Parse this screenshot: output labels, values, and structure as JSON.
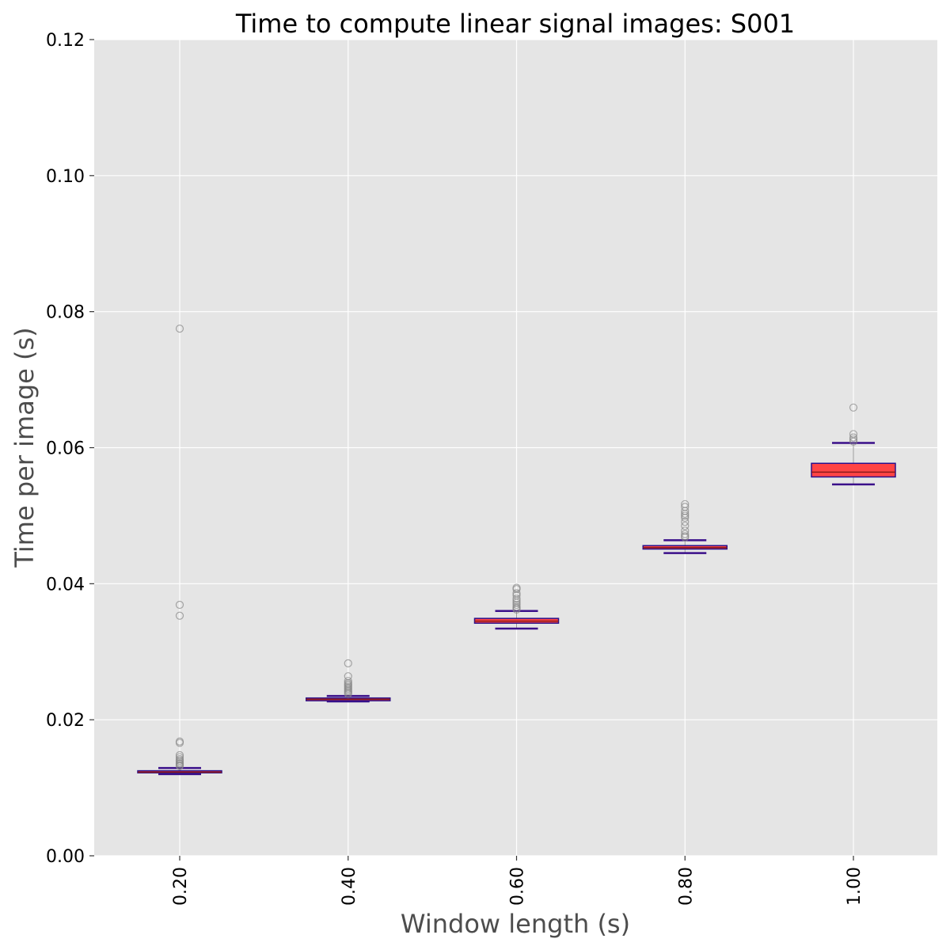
{
  "chart_data": {
    "type": "box",
    "title": "Time to compute linear signal images: S001",
    "xlabel": "Window length (s)",
    "ylabel": "Time per image (s)",
    "ylim": [
      0,
      0.12
    ],
    "yticks": [
      "0.00",
      "0.02",
      "0.04",
      "0.06",
      "0.08",
      "0.10",
      "0.12"
    ],
    "grid": true,
    "colors": {
      "background": "#e5e5e5",
      "grid": "#ffffff",
      "box_fill": "#ff4444",
      "box_edge": "#2b0f8a",
      "median": "#8b1a1a",
      "whisker_cap": "#3a0f8a",
      "outlier": "#888888"
    },
    "categories": [
      "0.20",
      "0.40",
      "0.60",
      "0.80",
      "1.00"
    ],
    "boxes": [
      {
        "q1": 0.0122,
        "median": 0.0123,
        "q3": 0.0125,
        "whisker_low": 0.012,
        "whisker_high": 0.0129,
        "outliers": [
          0.0775,
          0.0369,
          0.0353,
          0.0168,
          0.0166,
          0.0148,
          0.0145,
          0.0142,
          0.014,
          0.0138,
          0.0136,
          0.0135,
          0.0133,
          0.0132
        ]
      },
      {
        "q1": 0.0228,
        "median": 0.023,
        "q3": 0.0232,
        "whisker_low": 0.0227,
        "whisker_high": 0.0235,
        "outliers": [
          0.0283,
          0.0264,
          0.0257,
          0.0254,
          0.0252,
          0.025,
          0.0248,
          0.0246,
          0.0244,
          0.0242,
          0.024,
          0.0238
        ]
      },
      {
        "q1": 0.0342,
        "median": 0.0345,
        "q3": 0.0349,
        "whisker_low": 0.0334,
        "whisker_high": 0.036,
        "outliers": [
          0.0394,
          0.0392,
          0.0386,
          0.0383,
          0.0378,
          0.0375,
          0.0372,
          0.0369,
          0.0366,
          0.0364,
          0.0362
        ]
      },
      {
        "q1": 0.0451,
        "median": 0.0453,
        "q3": 0.0456,
        "whisker_low": 0.0445,
        "whisker_high": 0.0464,
        "outliers": [
          0.0517,
          0.0513,
          0.0507,
          0.0503,
          0.05,
          0.0497,
          0.0491,
          0.0485,
          0.0478,
          0.0473,
          0.047,
          0.0468
        ]
      },
      {
        "q1": 0.0557,
        "median": 0.0564,
        "q3": 0.0577,
        "whisker_low": 0.0546,
        "whisker_high": 0.0607,
        "outliers": [
          0.0659,
          0.062,
          0.0615,
          0.0612,
          0.0609
        ]
      }
    ]
  }
}
